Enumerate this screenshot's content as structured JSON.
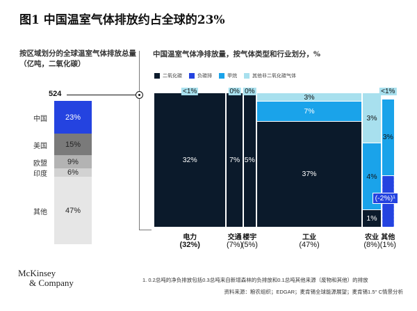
{
  "title": "图1 中国温室气体排放约占全球的23%",
  "left_title": "按区域划分的全球温室气体排放总量（亿吨，二氧化碳）",
  "right_title": "中国温室气体净排放量，按气体类型和行业划分，%",
  "legend": [
    {
      "label": "二氧化碳",
      "color": "#0b1a2b"
    },
    {
      "label": "负碳排",
      "color": "#2443e0"
    },
    {
      "label": "甲烷",
      "color": "#1aa3ea"
    },
    {
      "label": "其他非二氧化碳气体",
      "color": "#a8e0ee"
    }
  ],
  "chart_data": [
    {
      "type": "bar",
      "title": "按区域划分的全球温室气体排放总量（亿吨，二氧化碳）",
      "total_label": "524",
      "categories": [
        "中国",
        "美国",
        "欧盟",
        "印度",
        "其他"
      ],
      "values": [
        23,
        15,
        9,
        6,
        47
      ],
      "labels": [
        "23%",
        "15%",
        "9%",
        "6%",
        "47%"
      ],
      "colors": [
        "#2443e0",
        "#7a7a7a",
        "#b3b3b3",
        "#d2d2d2",
        "#e6e6e6"
      ]
    },
    {
      "type": "bar",
      "subtype": "mosaic",
      "title": "中国温室气体净排放量，按气体类型和行业划分，%",
      "sectors": [
        {
          "name": "电力",
          "share_label": "(32%)",
          "share": 32,
          "bold": true,
          "segments": [
            {
              "gas": "二氧化碳",
              "value": 32,
              "label": "32%"
            }
          ],
          "top_tag": "<1%"
        },
        {
          "name": "交通",
          "share_label": "(7%)",
          "share": 7,
          "segments": [
            {
              "gas": "二氧化碳",
              "value": 7,
              "label": "7%"
            }
          ],
          "top_tag": "0%"
        },
        {
          "name": "楼宇",
          "share_label": "(5%)",
          "share": 5,
          "segments": [
            {
              "gas": "二氧化碳",
              "value": 5,
              "label": "5%"
            }
          ],
          "top_tag": "0%"
        },
        {
          "name": "工业",
          "share_label": "(47%)",
          "share": 47,
          "segments": [
            {
              "gas": "二氧化碳",
              "value": 37,
              "label": "37%"
            },
            {
              "gas": "甲烷",
              "value": 7,
              "label": "7%"
            },
            {
              "gas": "其他非二氧化碳气体",
              "value": 3,
              "label": "3%"
            }
          ]
        },
        {
          "name": "农业",
          "share_label": "(8%)",
          "share": 8,
          "segments": [
            {
              "gas": "二氧化碳",
              "value": 1,
              "label": "1%"
            },
            {
              "gas": "甲烷",
              "value": 4,
              "label": "4%"
            },
            {
              "gas": "其他非二氧化碳气体",
              "value": 3,
              "label": "3%"
            }
          ]
        },
        {
          "name": "其他",
          "share_label": "(1%)",
          "share": 1,
          "segments": [
            {
              "gas": "负碳排",
              "value": -2,
              "label": "(-2%)¹"
            },
            {
              "gas": "甲烷",
              "value": 3,
              "label": "3%"
            }
          ],
          "top_tag": "<1%"
        }
      ]
    }
  ],
  "footnote": "1.  0.2总吨的净负排放包括0.3总吨来自新增森林的负排放和0.1总吨其他来源（废物和其他）的排放",
  "source": "资料来源：粮农组织；EDGAR；麦肯锡全球能源展望；麦肯锡1.5° C情景分析",
  "logo": [
    "McKinsey",
    "& Company"
  ]
}
